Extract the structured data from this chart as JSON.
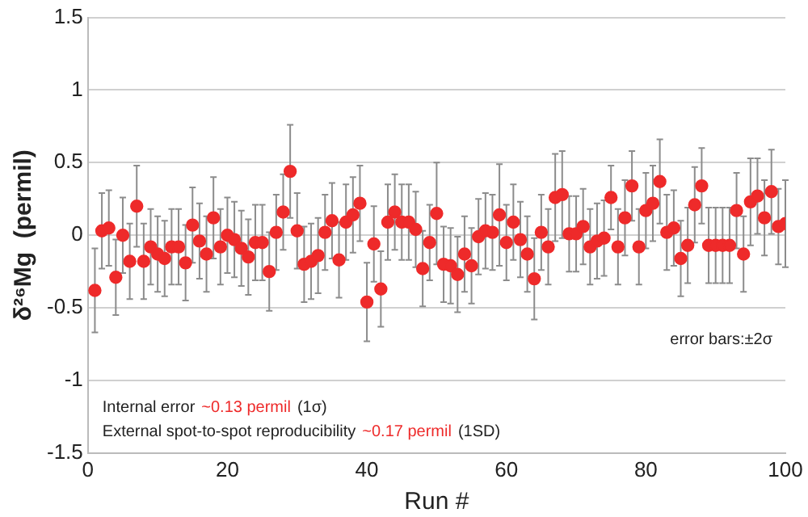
{
  "chart_data": {
    "type": "scatter",
    "xlabel": "Run #",
    "ylabel": "δ²⁶Mg  (permil)",
    "xlim": [
      0,
      100
    ],
    "xticks": [
      0,
      20,
      40,
      60,
      80,
      100
    ],
    "ylim": [
      -1.5,
      1.5
    ],
    "yticks": [
      -1.5,
      -1,
      -0.5,
      0,
      0.5,
      1,
      1.5
    ],
    "grid": "y",
    "legend": false,
    "marker": "circle",
    "x": [
      1,
      2,
      3,
      4,
      5,
      6,
      7,
      8,
      9,
      10,
      11,
      12,
      13,
      14,
      15,
      16,
      17,
      18,
      19,
      20,
      21,
      22,
      23,
      24,
      25,
      26,
      27,
      28,
      29,
      30,
      31,
      32,
      33,
      34,
      35,
      36,
      37,
      38,
      39,
      40,
      41,
      42,
      43,
      44,
      45,
      46,
      47,
      48,
      49,
      50,
      51,
      52,
      53,
      54,
      55,
      56,
      57,
      58,
      59,
      60,
      61,
      62,
      63,
      64,
      65,
      66,
      67,
      68,
      69,
      70,
      71,
      72,
      73,
      74,
      75,
      76,
      77,
      78,
      79,
      80,
      81,
      82,
      83,
      84,
      85,
      86,
      87,
      88,
      89,
      90,
      91,
      92,
      93,
      94,
      95,
      96,
      97,
      98,
      99,
      100
    ],
    "series": [
      {
        "color": "#ee2a2a",
        "values": [
          -0.38,
          0.03,
          0.05,
          -0.29,
          0,
          -0.18,
          0.2,
          -0.18,
          -0.08,
          -0.13,
          -0.16,
          -0.08,
          -0.08,
          -0.19,
          0.07,
          -0.04,
          -0.13,
          0.12,
          -0.08,
          0,
          -0.03,
          -0.09,
          -0.15,
          -0.05,
          -0.05,
          -0.25,
          0.02,
          0.16,
          0.44,
          0.03,
          -0.2,
          -0.18,
          -0.14,
          0.02,
          0.1,
          -0.17,
          0.09,
          0.14,
          0.22,
          -0.46,
          -0.06,
          -0.37,
          0.09,
          0.16,
          0.09,
          0.09,
          0.04,
          -0.23,
          -0.05,
          0.15,
          -0.2,
          -0.21,
          -0.27,
          -0.13,
          -0.21,
          -0.01,
          0.03,
          0.02,
          0.14,
          -0.05,
          0.09,
          -0.03,
          -0.13,
          -0.3,
          0.02,
          -0.08,
          0.26,
          0.28,
          0.01,
          0.01,
          0.06,
          -0.08,
          -0.04,
          -0.02,
          0.26,
          -0.08,
          0.12,
          0.34,
          -0.08,
          0.17,
          0.22,
          0.37,
          0.02,
          0.05,
          -0.16,
          -0.07,
          0.21,
          0.34,
          -0.07,
          -0.07,
          -0.07,
          -0.07,
          0.17,
          -0.13,
          0.23,
          0.27,
          0.12,
          0.3,
          0.06,
          0.08
        ],
        "errors": [
          0.29,
          0.26,
          0.26,
          0.26,
          0.26,
          0.26,
          0.28,
          0.26,
          0.26,
          0.26,
          0.26,
          0.26,
          0.26,
          0.26,
          0.26,
          0.26,
          0.26,
          0.28,
          0.26,
          0.26,
          0.26,
          0.26,
          0.26,
          0.26,
          0.26,
          0.27,
          0.26,
          0.26,
          0.32,
          0.26,
          0.26,
          0.26,
          0.26,
          0.26,
          0.26,
          0.26,
          0.26,
          0.26,
          0.26,
          0.27,
          0.26,
          0.26,
          0.26,
          0.26,
          0.26,
          0.26,
          0.26,
          0.26,
          0.26,
          0.35,
          0.26,
          0.26,
          0.26,
          0.26,
          0.26,
          0.26,
          0.26,
          0.26,
          0.35,
          0.26,
          0.26,
          0.26,
          0.26,
          0.28,
          0.26,
          0.26,
          0.3,
          0.3,
          0.26,
          0.26,
          0.26,
          0.26,
          0.26,
          0.26,
          0.22,
          0.26,
          0.26,
          0.24,
          0.26,
          0.26,
          0.26,
          0.29,
          0.26,
          0.26,
          0.26,
          0.26,
          0.26,
          0.26,
          0.26,
          0.26,
          0.26,
          0.26,
          0.26,
          0.26,
          0.3,
          0.26,
          0.26,
          0.29,
          0.26,
          0.3
        ]
      }
    ],
    "annotations": [
      "error bars:±2σ",
      "Internal error",
      "~0.13 permil",
      "(1σ)",
      "External spot-to-spot reproducibility",
      "~0.17 permil",
      "(1SD)"
    ]
  }
}
